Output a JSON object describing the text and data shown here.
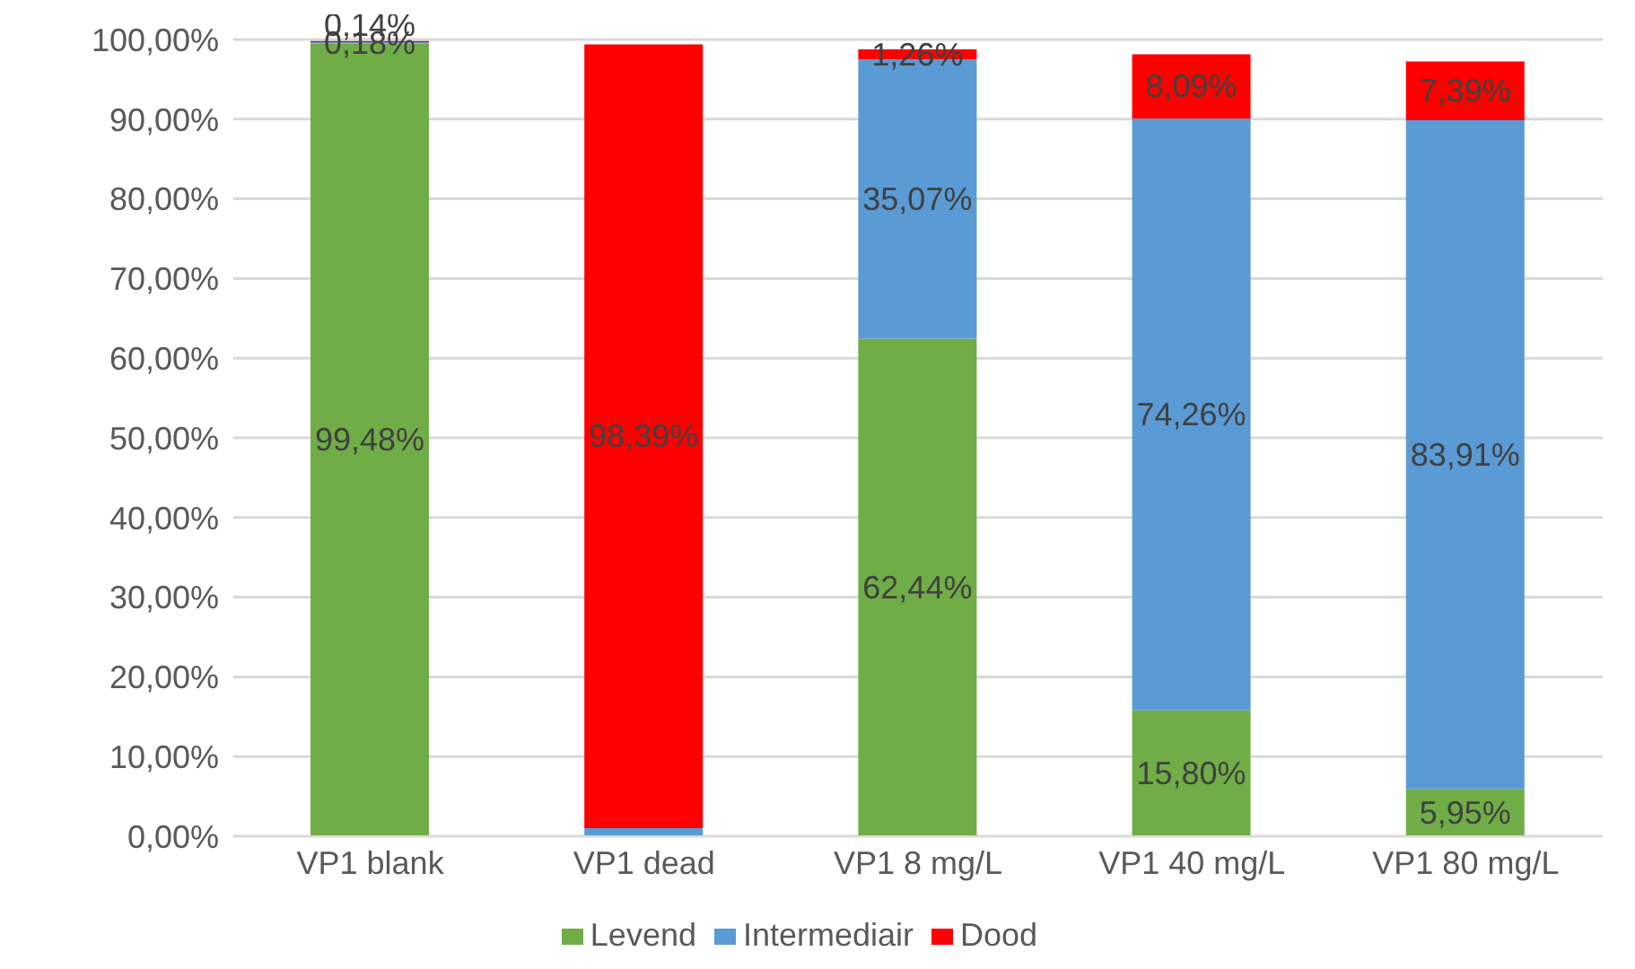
{
  "chart_data": {
    "type": "bar",
    "stacked": true,
    "categories": [
      "VP1 blank",
      "VP1 dead",
      "VP1 8 mg/L",
      "VP1 40 mg/L",
      "VP1 80 mg/L"
    ],
    "series": [
      {
        "name": "Levend",
        "color": "#70ad47",
        "values": [
          99.48,
          0,
          62.44,
          15.8,
          5.95
        ],
        "value_labels": [
          "99,48%",
          null,
          "62,44%",
          "15,80%",
          "5,95%"
        ]
      },
      {
        "name": "Intermediair",
        "color": "#5b9bd5",
        "values": [
          0.18,
          1.0,
          35.07,
          74.26,
          83.91
        ],
        "value_labels": [
          "0,18%",
          null,
          "35,07%",
          "74,26%",
          "83,91%"
        ]
      },
      {
        "name": "Dood",
        "color": "#ff0000",
        "values": [
          0.14,
          98.39,
          1.26,
          8.09,
          7.39
        ],
        "value_labels": [
          "0,14%",
          "98,39%",
          "1,26%",
          "8,09%",
          "7,39%"
        ]
      }
    ],
    "ylim": [
      0,
      100
    ],
    "yticks": [
      {
        "value": 0,
        "label": "0,00%"
      },
      {
        "value": 10,
        "label": "10,00%"
      },
      {
        "value": 20,
        "label": "20,00%"
      },
      {
        "value": 30,
        "label": "30,00%"
      },
      {
        "value": 40,
        "label": "40,00%"
      },
      {
        "value": 50,
        "label": "50,00%"
      },
      {
        "value": 60,
        "label": "60,00%"
      },
      {
        "value": 70,
        "label": "70,00%"
      },
      {
        "value": 80,
        "label": "80,00%"
      },
      {
        "value": 90,
        "label": "90,00%"
      },
      {
        "value": 100,
        "label": "100,00%"
      }
    ],
    "grid": "y",
    "legend": "bottom"
  }
}
